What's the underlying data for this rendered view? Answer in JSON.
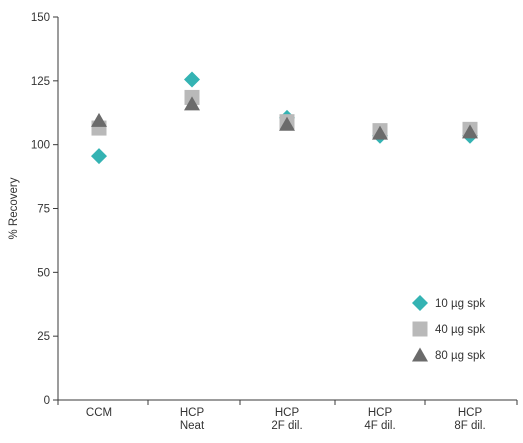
{
  "chart_data": {
    "type": "scatter",
    "ylabel": "% Recovery",
    "xlabel": "",
    "ylim": [
      0,
      150
    ],
    "yticks": [
      0,
      25,
      50,
      75,
      100,
      125,
      150
    ],
    "grid": false,
    "legend_position": "bottom-right",
    "categories": [
      {
        "lines": [
          "CCM"
        ]
      },
      {
        "lines": [
          "HCP",
          "Neat"
        ]
      },
      {
        "lines": [
          "HCP",
          "2F dil."
        ]
      },
      {
        "lines": [
          "HCP",
          "4F dil."
        ]
      },
      {
        "lines": [
          "HCP",
          "8F dil."
        ]
      }
    ],
    "series": [
      {
        "name": "10 µg spk",
        "marker": "diamond",
        "color": "#34b3b3",
        "values": [
          95.5,
          125.5,
          110.5,
          103.5,
          103.5
        ]
      },
      {
        "name": "40 µg spk",
        "marker": "square",
        "color": "#b9b9b9",
        "values": [
          106.5,
          118.5,
          109,
          105.5,
          106
        ]
      },
      {
        "name": "80 µg spk",
        "marker": "triangle",
        "color": "#6b6b6b",
        "values": [
          109.5,
          116,
          108,
          104.5,
          105
        ]
      }
    ]
  }
}
